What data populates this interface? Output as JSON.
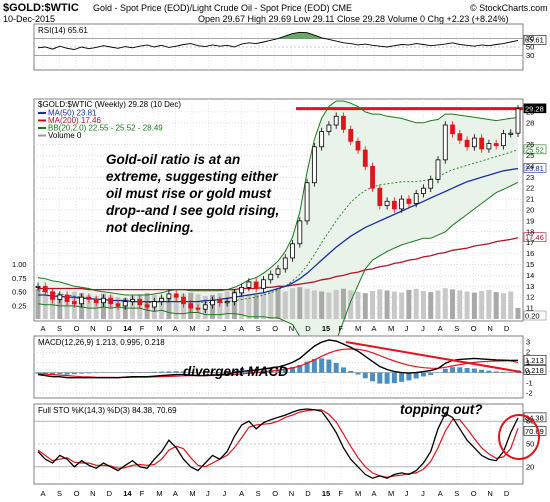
{
  "header": {
    "symbol": "$GOLD:$WTIC",
    "description": "Gold - Spot Price (EOD)/Light Crude Oil - Spot Price (EOD)",
    "exchange": "CME",
    "date": "10-Dec-2015",
    "ohlc_text": "Open 29.67  High 29.69  Low 29.11  Close 29.28  Volume 0  Chg +2.23 (+8.24%)",
    "watermark": "© StockCharts.com"
  },
  "chart_data": {
    "type": "line",
    "x_labels": [
      "A",
      "S",
      "O",
      "N",
      "D",
      "14",
      "F",
      "M",
      "A",
      "M",
      "J",
      "J",
      "A",
      "S",
      "O",
      "N",
      "D",
      "15",
      "F",
      "M",
      "A",
      "M",
      "J",
      "J",
      "A",
      "S",
      "O",
      "N",
      "D"
    ],
    "rsi": {
      "label": "RSI(14) 65.61",
      "ylim": [
        0,
        100
      ],
      "levels": [
        70,
        50,
        30
      ],
      "yticks": [
        70,
        50,
        30
      ],
      "last": 65.61,
      "last_text": "65.61",
      "values": [
        48,
        50,
        45,
        52,
        47,
        44,
        50,
        46,
        49,
        53,
        50,
        47,
        51,
        48,
        52,
        55,
        50,
        54,
        49,
        52,
        56,
        58,
        53,
        51,
        55,
        52,
        54,
        50,
        57,
        60,
        58,
        62,
        66,
        70,
        76,
        82,
        85,
        84,
        78,
        72,
        68,
        64,
        60,
        58,
        55,
        57,
        54,
        52,
        50,
        53,
        56,
        55,
        58,
        56,
        53,
        55,
        57,
        60,
        56,
        54,
        52,
        55,
        53,
        56,
        58,
        62,
        65.61
      ]
    },
    "price": {
      "label": "$GOLD:$WTIC (Weekly) 29.28 (10 Dec)",
      "legend": [
        "MA(50) 23.81",
        "MA(200) 17.46",
        "BB(20,2.0) 22.55 - 25.52 - 28.49",
        "Volume 0"
      ],
      "ylim": [
        10,
        30
      ],
      "yticks": [
        29,
        28,
        26,
        25,
        24,
        23,
        22,
        21,
        20,
        19,
        18,
        17,
        16,
        15,
        14,
        13,
        12,
        11
      ],
      "left_volume_ticks": [
        "1.00",
        "0.75",
        "0.50",
        "0.25"
      ],
      "price_tags": [
        "29.28",
        "25.52",
        "23.81",
        "17.46",
        "0.20"
      ],
      "resistance": 29.3,
      "close": [
        13.0,
        12.5,
        11.8,
        12.2,
        11.6,
        11.4,
        12.0,
        11.8,
        11.5,
        11.9,
        11.4,
        11.2,
        11.6,
        11.8,
        11.3,
        11.1,
        11.6,
        11.9,
        12.3,
        12.0,
        11.4,
        11.0,
        10.9,
        11.3,
        11.7,
        11.5,
        11.6,
        12.4,
        12.9,
        13.4,
        12.8,
        13.6,
        14.1,
        14.6,
        15.6,
        16.9,
        19.0,
        22.5,
        25.8,
        27.2,
        27.8,
        28.6,
        27.4,
        26.3,
        25.5,
        24.0,
        22.0,
        20.4,
        20.8,
        20.1,
        21.0,
        20.6,
        21.5,
        22.0,
        22.8,
        24.6,
        27.8,
        27.0,
        26.4,
        25.8,
        26.6,
        25.6,
        26.1,
        25.9,
        27.0,
        27.05,
        29.28
      ],
      "ma50": [
        12.2,
        12.2,
        12.1,
        12.1,
        12.0,
        12.0,
        11.9,
        11.9,
        11.8,
        11.8,
        11.7,
        11.7,
        11.7,
        11.6,
        11.6,
        11.6,
        11.6,
        11.6,
        11.6,
        11.6,
        11.6,
        11.6,
        11.6,
        11.7,
        11.7,
        11.8,
        11.9,
        12.0,
        12.1,
        12.2,
        12.3,
        12.4,
        12.6,
        12.8,
        13.0,
        13.3,
        13.7,
        14.2,
        14.8,
        15.4,
        16.0,
        16.6,
        17.1,
        17.6,
        18.0,
        18.4,
        18.7,
        19.0,
        19.3,
        19.6,
        19.9,
        20.2,
        20.5,
        20.8,
        21.1,
        21.4,
        21.7,
        22.0,
        22.3,
        22.6,
        22.8,
        23.0,
        23.2,
        23.4,
        23.6,
        23.7,
        23.81
      ],
      "ma200": [
        12.8,
        12.8,
        12.8,
        12.8,
        12.8,
        12.8,
        12.8,
        12.7,
        12.7,
        12.7,
        12.7,
        12.7,
        12.7,
        12.7,
        12.7,
        12.7,
        12.7,
        12.7,
        12.7,
        12.7,
        12.7,
        12.7,
        12.7,
        12.7,
        12.7,
        12.7,
        12.7,
        12.7,
        12.8,
        12.8,
        12.8,
        12.9,
        12.9,
        13.0,
        13.0,
        13.1,
        13.2,
        13.3,
        13.4,
        13.6,
        13.7,
        13.9,
        14.0,
        14.2,
        14.3,
        14.5,
        14.6,
        14.8,
        14.9,
        15.1,
        15.2,
        15.4,
        15.5,
        15.7,
        15.8,
        16.0,
        16.1,
        16.3,
        16.4,
        16.5,
        16.7,
        16.8,
        16.9,
        17.1,
        17.2,
        17.3,
        17.46
      ],
      "bb_upper": [
        13.8,
        13.7,
        13.5,
        13.4,
        13.2,
        13.0,
        12.9,
        12.8,
        12.6,
        12.5,
        12.4,
        12.3,
        12.2,
        12.2,
        12.2,
        12.2,
        12.3,
        12.4,
        12.6,
        12.7,
        12.7,
        12.6,
        12.6,
        12.6,
        12.6,
        12.6,
        12.7,
        12.9,
        13.2,
        13.6,
        13.8,
        14.2,
        14.7,
        15.3,
        16.2,
        17.5,
        19.8,
        23.5,
        26.5,
        28.4,
        29.5,
        30.0,
        30.0,
        29.8,
        29.5,
        29.0,
        28.8,
        28.8,
        28.6,
        28.5,
        28.4,
        28.2,
        28.0,
        28.0,
        28.2,
        28.3,
        28.8,
        28.8,
        28.7,
        28.6,
        28.5,
        28.4,
        28.3,
        28.2,
        28.3,
        28.4,
        28.49
      ],
      "bb_mid": [
        12.6,
        12.5,
        12.4,
        12.3,
        12.2,
        12.1,
        12.0,
        11.9,
        11.8,
        11.8,
        11.7,
        11.7,
        11.6,
        11.6,
        11.6,
        11.5,
        11.5,
        11.6,
        11.6,
        11.6,
        11.6,
        11.6,
        11.6,
        11.5,
        11.5,
        11.5,
        11.6,
        11.7,
        11.8,
        11.9,
        12.0,
        12.2,
        12.4,
        12.7,
        13.0,
        13.5,
        14.1,
        14.9,
        15.9,
        17.0,
        18.0,
        19.0,
        19.9,
        20.7,
        21.3,
        21.8,
        22.1,
        22.3,
        22.4,
        22.5,
        22.6,
        22.6,
        22.6,
        22.7,
        22.8,
        23.0,
        23.4,
        23.7,
        23.9,
        24.1,
        24.3,
        24.5,
        24.7,
        24.9,
        25.1,
        25.3,
        25.52
      ],
      "bb_lower": [
        11.4,
        11.3,
        11.3,
        11.2,
        11.2,
        11.2,
        11.1,
        11.0,
        11.0,
        11.1,
        11.0,
        11.1,
        11.0,
        11.0,
        11.0,
        10.8,
        10.7,
        10.8,
        10.6,
        10.5,
        10.5,
        10.6,
        10.6,
        10.4,
        10.4,
        10.4,
        10.5,
        10.5,
        10.4,
        10.2,
        10.2,
        10.2,
        10.1,
        10.1,
        9.8,
        9.5,
        8.4,
        6.3,
        5.3,
        5.6,
        6.5,
        8.0,
        9.8,
        11.6,
        13.1,
        14.6,
        15.4,
        15.8,
        16.2,
        16.5,
        16.8,
        17.0,
        17.2,
        17.4,
        17.4,
        17.7,
        18.0,
        18.6,
        19.1,
        19.6,
        20.1,
        20.6,
        21.1,
        21.6,
        21.9,
        22.2,
        22.55
      ],
      "volume": [
        0.55,
        0.48,
        0.4,
        0.45,
        0.42,
        0.5,
        0.47,
        0.44,
        0.41,
        0.46,
        0.43,
        0.4,
        0.38,
        0.42,
        0.45,
        0.47,
        0.44,
        0.41,
        0.39,
        0.43,
        0.46,
        0.48,
        0.45,
        0.42,
        0.44,
        0.47,
        0.5,
        0.52,
        0.49,
        0.46,
        0.44,
        0.48,
        0.51,
        0.54,
        0.5,
        0.56,
        0.58,
        0.55,
        0.52,
        0.5,
        0.48,
        0.53,
        0.55,
        0.52,
        0.49,
        0.47,
        0.51,
        0.54,
        0.52,
        0.5,
        0.48,
        0.53,
        0.55,
        0.51,
        0.49,
        0.52,
        0.56,
        0.54,
        0.52,
        0.5,
        0.48,
        0.51,
        0.53,
        0.49,
        0.47,
        0.5,
        0.2
      ]
    },
    "macd": {
      "label": "MACD(12,26,9) 1.213, 0.995, 0.218",
      "ylim": [
        -2.3,
        3.4
      ],
      "yticks": [
        3,
        2,
        1,
        0,
        -1,
        -2
      ],
      "tags": [
        "1.213",
        "0.218"
      ],
      "macd": [
        -0.2,
        -0.3,
        -0.4,
        -0.4,
        -0.5,
        -0.5,
        -0.5,
        -0.5,
        -0.5,
        -0.5,
        -0.5,
        -0.5,
        -0.45,
        -0.4,
        -0.4,
        -0.4,
        -0.35,
        -0.3,
        -0.25,
        -0.2,
        -0.2,
        -0.25,
        -0.3,
        -0.3,
        -0.25,
        -0.2,
        -0.15,
        0.0,
        0.1,
        0.2,
        0.25,
        0.35,
        0.45,
        0.55,
        0.75,
        1.0,
        1.4,
        2.0,
        2.6,
        3.0,
        3.2,
        3.1,
        2.8,
        2.5,
        2.1,
        1.6,
        1.1,
        0.6,
        0.3,
        0.1,
        0.0,
        -0.05,
        0.0,
        0.1,
        0.2,
        0.4,
        0.9,
        1.2,
        1.3,
        1.35,
        1.4,
        1.35,
        1.3,
        1.25,
        1.22,
        1.2,
        1.213
      ],
      "signal": [
        -0.1,
        -0.15,
        -0.2,
        -0.25,
        -0.3,
        -0.35,
        -0.4,
        -0.42,
        -0.45,
        -0.46,
        -0.47,
        -0.48,
        -0.47,
        -0.46,
        -0.45,
        -0.44,
        -0.42,
        -0.4,
        -0.37,
        -0.34,
        -0.31,
        -0.3,
        -0.3,
        -0.3,
        -0.29,
        -0.27,
        -0.24,
        -0.19,
        -0.13,
        -0.06,
        0.0,
        0.07,
        0.15,
        0.23,
        0.33,
        0.46,
        0.65,
        0.92,
        1.25,
        1.6,
        1.92,
        2.16,
        2.29,
        2.33,
        2.29,
        2.16,
        1.95,
        1.68,
        1.4,
        1.14,
        0.91,
        0.72,
        0.58,
        0.48,
        0.43,
        0.42,
        0.52,
        0.66,
        0.78,
        0.9,
        1.0,
        1.07,
        1.11,
        1.14,
        1.15,
        1.16,
        0.995
      ],
      "histogram": [
        -0.1,
        -0.15,
        -0.2,
        -0.15,
        -0.2,
        -0.15,
        -0.1,
        -0.08,
        -0.05,
        -0.04,
        -0.03,
        -0.02,
        0.02,
        0.06,
        0.05,
        0.04,
        0.07,
        0.1,
        0.12,
        0.14,
        0.11,
        0.05,
        0.0,
        0.0,
        0.04,
        0.07,
        0.09,
        0.19,
        0.23,
        0.26,
        0.25,
        0.28,
        0.3,
        0.32,
        0.42,
        0.54,
        0.75,
        1.08,
        1.35,
        1.4,
        1.28,
        0.94,
        0.51,
        0.17,
        -0.19,
        -0.56,
        -0.85,
        -1.08,
        -1.1,
        -1.04,
        -0.91,
        -0.77,
        -0.58,
        -0.38,
        -0.23,
        -0.02,
        0.38,
        0.54,
        0.52,
        0.45,
        0.4,
        0.28,
        0.19,
        0.11,
        0.07,
        0.04,
        0.218
      ]
    },
    "sto": {
      "label": "Full STO %K(14,3) %D(3) 84.38, 70.69",
      "ylim": [
        0,
        100
      ],
      "levels": [
        80,
        20
      ],
      "yticks": [
        80,
        50,
        20
      ],
      "tags": [
        "84.38",
        "70.69"
      ],
      "k": [
        40,
        30,
        25,
        35,
        30,
        20,
        28,
        22,
        18,
        25,
        20,
        15,
        22,
        28,
        20,
        18,
        30,
        40,
        55,
        45,
        30,
        20,
        15,
        25,
        35,
        30,
        40,
        60,
        75,
        80,
        70,
        78,
        82,
        85,
        88,
        92,
        95,
        96,
        95,
        93,
        80,
        65,
        45,
        30,
        20,
        10,
        5,
        8,
        5,
        10,
        12,
        10,
        15,
        25,
        40,
        70,
        90,
        85,
        70,
        55,
        45,
        35,
        30,
        28,
        40,
        65,
        84.38
      ],
      "d": [
        42,
        35,
        28,
        30,
        32,
        26,
        25,
        25,
        22,
        22,
        21,
        18,
        19,
        22,
        23,
        22,
        23,
        30,
        42,
        47,
        44,
        32,
        22,
        20,
        25,
        30,
        35,
        45,
        58,
        72,
        75,
        76,
        77,
        80,
        85,
        88,
        92,
        94,
        95,
        95,
        89,
        79,
        63,
        47,
        32,
        20,
        12,
        8,
        6,
        8,
        9,
        11,
        12,
        17,
        27,
        45,
        67,
        82,
        82,
        70,
        57,
        45,
        37,
        31,
        33,
        44,
        70.69
      ]
    },
    "bottom_x_labels": [
      "A",
      "S",
      "O",
      "N",
      "D",
      "14",
      "F",
      "M",
      "A",
      "M",
      "J",
      "J",
      "A",
      "S",
      "O",
      "N",
      "D",
      "15",
      "F",
      "M",
      "A",
      "M",
      "J",
      "J",
      "A",
      "S",
      "O",
      "N",
      "D"
    ]
  },
  "annotations": {
    "main_note_lines": [
      "Gold-oil ratio is at an",
      "extreme, suggesting either",
      "oil must rise or gold must",
      "drop--and I see gold rising,",
      "not declining."
    ],
    "macd_note": "divergent MACD",
    "sto_note": "topping out?"
  },
  "colors": {
    "grid": "#d8d8d8",
    "border": "#808080",
    "bb": "#1a7a1a",
    "bb_fill": "#e9f3e9",
    "ma50": "#1c2fa0",
    "ma200": "#b3132a",
    "up": "#000000",
    "down": "#e0141c",
    "volume": "#c8c8c8",
    "volume_up": "#a9a9a9",
    "rsi_fill": "#4c9a4c",
    "macd_line": "#000000",
    "signal_line": "#e0141c",
    "hist": "#4b8fc2",
    "k_line": "#000000",
    "d_line": "#e0141c",
    "annotation_red": "#e0141c"
  }
}
